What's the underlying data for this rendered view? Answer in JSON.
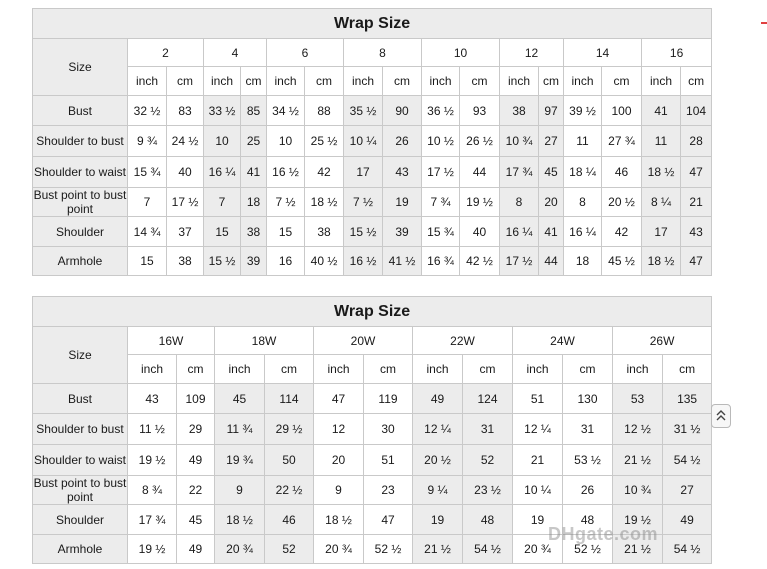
{
  "table1": {
    "title": "Wrap Size",
    "size_label": "Size",
    "sizes": [
      "2",
      "4",
      "6",
      "8",
      "10",
      "12",
      "14",
      "16"
    ],
    "units": [
      [
        "inch",
        "cm"
      ],
      [
        "inch",
        "cm"
      ],
      [
        "inch",
        "cm"
      ],
      [
        "inch",
        "cm"
      ],
      [
        "inch",
        "cm"
      ],
      [
        "inch",
        "cm"
      ],
      [
        "inch",
        "cm"
      ],
      [
        "inch",
        "cm"
      ]
    ],
    "rows": [
      {
        "label": "Bust",
        "values": [
          "32 ½",
          "83",
          "33 ½",
          "85",
          "34 ½",
          "88",
          "35 ½",
          "90",
          "36 ½",
          "93",
          "38",
          "97",
          "39 ½",
          "100",
          "41",
          "104"
        ]
      },
      {
        "label": "Shoulder to bust",
        "values": [
          "9 ¾",
          "24 ½",
          "10",
          "25",
          "10",
          "25 ½",
          "10 ¼",
          "26",
          "10 ½",
          "26 ½",
          "10 ¾",
          "27",
          "11",
          "27 ¾",
          "11",
          "28"
        ]
      },
      {
        "label": "Shoulder to waist",
        "values": [
          "15 ¾",
          "40",
          "16 ¼",
          "41",
          "16 ½",
          "42",
          "17",
          "43",
          "17 ½",
          "44",
          "17 ¾",
          "45",
          "18 ¼",
          "46",
          "18 ½",
          "47"
        ]
      },
      {
        "label": "Bust point to bust point",
        "values": [
          "7",
          "17 ½",
          "7",
          "18",
          "7 ½",
          "18 ½",
          "7 ½",
          "19",
          "7 ¾",
          "19 ½",
          "8",
          "20",
          "8",
          "20 ½",
          "8 ¼",
          "21"
        ]
      },
      {
        "label": "Shoulder",
        "values": [
          "14 ¾",
          "37",
          "15",
          "38",
          "15",
          "38",
          "15 ½",
          "39",
          "15 ¾",
          "40",
          "16 ¼",
          "41",
          "16 ¼",
          "42",
          "17",
          "43"
        ]
      },
      {
        "label": "Armhole",
        "values": [
          "15",
          "38",
          "15 ½",
          "39",
          "16",
          "40 ½",
          "16 ½",
          "41 ½",
          "16 ¾",
          "42 ½",
          "17 ½",
          "44",
          "18",
          "45 ½",
          "18 ½",
          "47"
        ]
      }
    ]
  },
  "table2": {
    "title": "Wrap Size",
    "size_label": "Size",
    "sizes": [
      "16W",
      "18W",
      "20W",
      "22W",
      "24W",
      "26W"
    ],
    "units": [
      [
        "inch",
        "cm"
      ],
      [
        "inch",
        "cm"
      ],
      [
        "inch",
        "cm"
      ],
      [
        "inch",
        "cm"
      ],
      [
        "inch",
        "cm"
      ],
      [
        "inch",
        "cm"
      ]
    ],
    "rows": [
      {
        "label": "Bust",
        "values": [
          "43",
          "109",
          "45",
          "114",
          "47",
          "119",
          "49",
          "124",
          "51",
          "130",
          "53",
          "135"
        ]
      },
      {
        "label": "Shoulder to bust",
        "values": [
          "11 ½",
          "29",
          "11 ¾",
          "29 ½",
          "12",
          "30",
          "12 ¼",
          "31",
          "12 ¼",
          "31",
          "12 ½",
          "31 ½"
        ]
      },
      {
        "label": "Shoulder to waist",
        "values": [
          "19 ½",
          "49",
          "19 ¾",
          "50",
          "20",
          "51",
          "20 ½",
          "52",
          "21",
          "53 ½",
          "21 ½",
          "54 ½"
        ]
      },
      {
        "label": "Bust point to bust point",
        "values": [
          "8 ¾",
          "22",
          "9",
          "22 ½",
          "9",
          "23",
          "9 ¼",
          "23 ½",
          "10 ¼",
          "26",
          "10 ¾",
          "27"
        ]
      },
      {
        "label": "Shoulder",
        "values": [
          "17 ¾",
          "45",
          "18 ½",
          "46",
          "18 ½",
          "47",
          "19",
          "48",
          "19",
          "48",
          "19 ½",
          "49"
        ]
      },
      {
        "label": "Armhole",
        "values": [
          "19 ½",
          "49",
          "20 ¾",
          "52",
          "20 ¾",
          "52 ½",
          "21 ½",
          "54 ½",
          "20 ¾",
          "52 ½",
          "21 ½",
          "54 ½"
        ]
      }
    ]
  },
  "watermark": "DHgate.com",
  "colors": {
    "header_bg": "#ececec",
    "border": "#c9c9c9",
    "accent_mark": "#e04040"
  },
  "icons": {
    "scroll_top": "double-chevron-up-icon"
  }
}
